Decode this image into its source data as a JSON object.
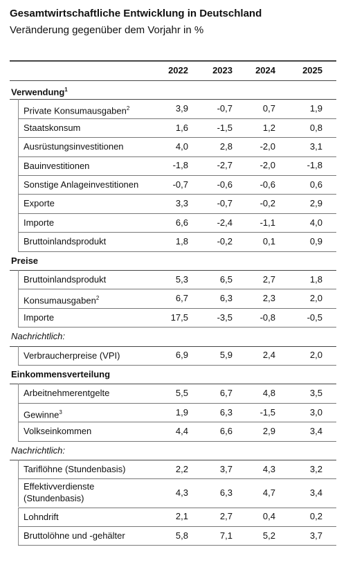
{
  "header": {
    "title": "Gesamtwirtschaftliche Entwicklung in Deutschland",
    "subtitle": "Veränderung gegenüber dem Vorjahr in %"
  },
  "table": {
    "columns": [
      "2022",
      "2023",
      "2024",
      "2025"
    ],
    "groups": [
      {
        "label": "Verwendung",
        "sup": "1",
        "italic": false,
        "rows": [
          {
            "label": "Private Konsumausgaben",
            "sup": "2",
            "values": [
              "3,9",
              "-0,7",
              "0,7",
              "1,9"
            ]
          },
          {
            "label": "Staatskonsum",
            "values": [
              "1,6",
              "-1,5",
              "1,2",
              "0,8"
            ]
          },
          {
            "label": "Ausrüstungsinvestitionen",
            "values": [
              "4,0",
              "2,8",
              "-2,0",
              "3,1"
            ]
          },
          {
            "label": "Bauinvestitionen",
            "values": [
              "-1,8",
              "-2,7",
              "-2,0",
              "-1,8"
            ]
          },
          {
            "label": "Sonstige Anlageinvestitionen",
            "values": [
              "-0,7",
              "-0,6",
              "-0,6",
              "0,6"
            ]
          },
          {
            "label": "Exporte",
            "values": [
              "3,3",
              "-0,7",
              "-0,2",
              "2,9"
            ]
          },
          {
            "label": "Importe",
            "values": [
              "6,6",
              "-2,4",
              "-1,1",
              "4,0"
            ]
          },
          {
            "label": "Bruttoinlandsprodukt",
            "values": [
              "1,8",
              "-0,2",
              "0,1",
              "0,9"
            ]
          }
        ]
      },
      {
        "label": "Preise",
        "italic": false,
        "rows": [
          {
            "label": "Bruttoinlandsprodukt",
            "values": [
              "5,3",
              "6,5",
              "2,7",
              "1,8"
            ]
          },
          {
            "label": "Konsumausgaben",
            "sup": "2",
            "values": [
              "6,7",
              "6,3",
              "2,3",
              "2,0"
            ]
          },
          {
            "label": "Importe",
            "values": [
              "17,5",
              "-3,5",
              "-0,8",
              "-0,5"
            ]
          }
        ]
      },
      {
        "label": "Nachrichtlich:",
        "italic": true,
        "rows": [
          {
            "label": "Verbraucherpreise (VPI)",
            "values": [
              "6,9",
              "5,9",
              "2,4",
              "2,0"
            ]
          }
        ]
      },
      {
        "label": "Einkommensverteilung",
        "italic": false,
        "rows": [
          {
            "label": "Arbeitnehmerentgelte",
            "values": [
              "5,5",
              "6,7",
              "4,8",
              "3,5"
            ]
          },
          {
            "label": "Gewinne",
            "sup": "3",
            "values": [
              "1,9",
              "6,3",
              "-1,5",
              "3,0"
            ]
          },
          {
            "label": "Volkseinkommen",
            "values": [
              "4,4",
              "6,6",
              "2,9",
              "3,4"
            ]
          }
        ]
      },
      {
        "label": "Nachrichtlich:",
        "italic": true,
        "rows": [
          {
            "label": "Tariflöhne (Stundenbasis)",
            "values": [
              "2,2",
              "3,7",
              "4,3",
              "3,2"
            ]
          },
          {
            "label": "Effektivverdienste",
            "label2": "(Stundenbasis)",
            "values": [
              "4,3",
              "6,3",
              "4,7",
              "3,4"
            ]
          },
          {
            "label": "Lohndrift",
            "values": [
              "2,1",
              "2,7",
              "0,4",
              "0,2"
            ]
          },
          {
            "label": "Bruttolöhne und -gehälter",
            "values": [
              "5,8",
              "7,1",
              "5,2",
              "3,7"
            ]
          }
        ]
      }
    ]
  }
}
